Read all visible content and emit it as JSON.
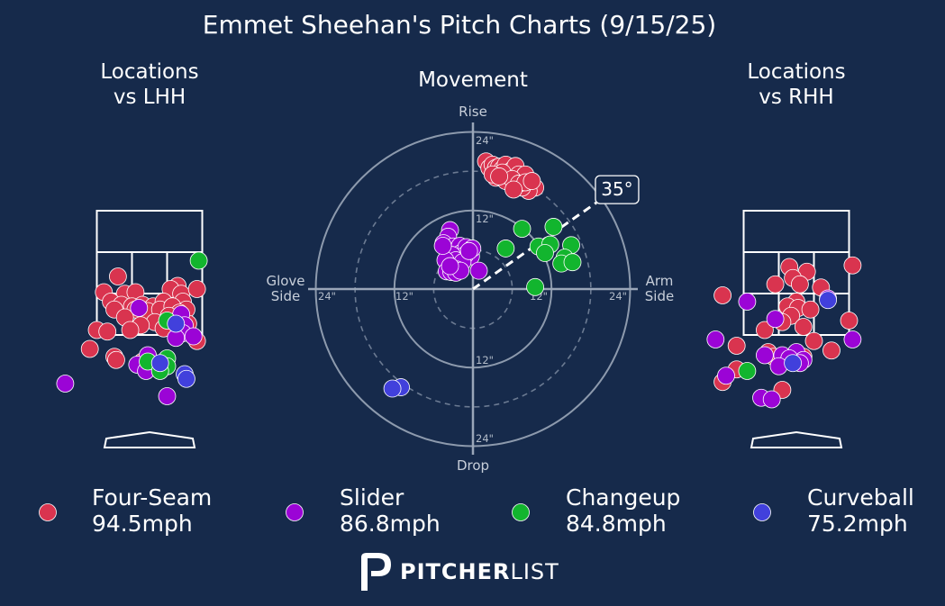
{
  "colors": {
    "background": "#162a4b",
    "four_seam": "#d9344f",
    "slider": "#9b04d6",
    "changeup": "#12b52e",
    "curveball": "#4140dc",
    "grid": "#9aa6b8",
    "text": "#ffffff"
  },
  "brand": {
    "bold": "PITCHER",
    "light": "LIST",
    "logo_icon": "pitcherlist-p-logo-icon"
  },
  "chart_data": [
    {
      "type": "scatter",
      "title": "Emmet Sheehan's Pitch Charts (9/15/25)",
      "subtitle": "Locations vs LHH",
      "title_lines": [
        "Locations",
        "vs LHH"
      ],
      "legend_placement": "bottom",
      "series": [
        {
          "name": "Four-Seam",
          "points": [
            [
              -0.9,
              4.0
            ],
            [
              -1.3,
              3.5
            ],
            [
              -0.7,
              3.45
            ],
            [
              -0.4,
              3.5
            ],
            [
              0.8,
              3.7
            ],
            [
              0.6,
              3.6
            ],
            [
              0.9,
              3.45
            ],
            [
              1.35,
              3.6
            ],
            [
              -1.1,
              3.2
            ],
            [
              -0.8,
              3.1
            ],
            [
              -0.5,
              3.05
            ],
            [
              -0.2,
              3.1
            ],
            [
              0.1,
              3.05
            ],
            [
              0.4,
              3.2
            ],
            [
              0.95,
              3.2
            ],
            [
              -1.0,
              2.95
            ],
            [
              -0.4,
              2.95
            ],
            [
              -0.05,
              2.9
            ],
            [
              0.3,
              2.95
            ],
            [
              0.65,
              3.05
            ],
            [
              1.05,
              2.95
            ],
            [
              0.85,
              2.85
            ],
            [
              -0.7,
              2.7
            ],
            [
              0.55,
              2.75
            ],
            [
              0.15,
              2.55
            ],
            [
              -0.25,
              2.45
            ],
            [
              0.55,
              2.55
            ],
            [
              1.1,
              2.5
            ],
            [
              -1.5,
              2.3
            ],
            [
              -1.2,
              2.25
            ],
            [
              -0.55,
              2.3
            ],
            [
              0.4,
              2.35
            ],
            [
              -1.7,
              1.7
            ],
            [
              -1.0,
              1.45
            ],
            [
              -0.95,
              1.35
            ],
            [
              -0.2,
              1.3
            ],
            [
              1.35,
              1.95
            ]
          ]
        },
        {
          "name": "Slider",
          "points": [
            [
              -0.3,
              3.0
            ],
            [
              0.9,
              2.8
            ],
            [
              1.0,
              2.45
            ],
            [
              0.95,
              2.2
            ],
            [
              0.75,
              2.05
            ],
            [
              1.25,
              2.1
            ],
            [
              -0.05,
              1.5
            ],
            [
              -0.35,
              1.2
            ],
            [
              -0.1,
              1.0
            ],
            [
              -2.4,
              0.6
            ],
            [
              0.5,
              0.2
            ]
          ]
        },
        {
          "name": "Changeup",
          "points": [
            [
              1.4,
              4.5
            ],
            [
              0.5,
              2.6
            ],
            [
              0.5,
              1.4
            ],
            [
              -0.05,
              1.3
            ],
            [
              0.5,
              1.15
            ],
            [
              0.3,
              1.0
            ]
          ]
        },
        {
          "name": "Curveball",
          "points": [
            [
              0.75,
              2.5
            ],
            [
              0.3,
              1.25
            ],
            [
              1.0,
              0.9
            ],
            [
              1.05,
              0.75
            ]
          ]
        }
      ]
    },
    {
      "type": "scatter",
      "subtitle": "Movement",
      "title_lines": [
        "Movement"
      ],
      "polar": true,
      "rings_inches": [
        6,
        12,
        18,
        24
      ],
      "axis_labels": {
        "top": "Rise",
        "bottom": "Drop",
        "left_lines": [
          "Glove",
          "Side"
        ],
        "right_lines": [
          "Arm",
          "Side"
        ]
      },
      "ring_labels": {
        "top24": "24\"",
        "top12": "12\"",
        "bottom12": "12\"",
        "bottom24": "24\"",
        "left24": "24\"",
        "left12": "12\"",
        "right12": "12\"",
        "right24": "24\""
      },
      "arm_angle": "35°",
      "arm_angle_deg": 35,
      "series": [
        {
          "name": "Four-Seam",
          "points": [
            [
              2,
              19.5
            ],
            [
              2.5,
              18.5
            ],
            [
              3,
              19
            ],
            [
              3.5,
              18.5
            ],
            [
              4,
              18.7
            ],
            [
              4.5,
              18.3
            ],
            [
              5,
              19
            ],
            [
              5.5,
              17.8
            ],
            [
              6,
              18.2
            ],
            [
              6.5,
              18.8
            ],
            [
              7,
              17.5
            ],
            [
              7.5,
              16.5
            ],
            [
              8,
              17.5
            ],
            [
              8.8,
              16
            ],
            [
              9.5,
              15.5
            ],
            [
              8.5,
              15
            ],
            [
              7.5,
              15.5
            ],
            [
              6.5,
              16.2
            ],
            [
              5.5,
              16.5
            ],
            [
              4.5,
              17.8
            ],
            [
              3.5,
              17
            ],
            [
              5,
              16.5
            ],
            [
              6,
              16.8
            ],
            [
              7,
              16.1
            ],
            [
              8,
              16.3
            ],
            [
              9,
              16.5
            ],
            [
              3,
              17.5
            ],
            [
              4,
              17.2
            ],
            [
              6.2,
              15.2
            ]
          ]
        },
        {
          "name": "Slider",
          "points": [
            [
              -3.5,
              9
            ],
            [
              -3.8,
              8
            ],
            [
              -4.5,
              7
            ],
            [
              -4,
              6.2
            ],
            [
              -3,
              6.5
            ],
            [
              -2.5,
              5.8
            ],
            [
              -2,
              6.6
            ],
            [
              -1.8,
              5.5
            ],
            [
              -1,
              6.4
            ],
            [
              -0.3,
              5
            ],
            [
              -0.1,
              6.2
            ],
            [
              -1.2,
              5.2
            ],
            [
              -3.2,
              5.2
            ],
            [
              -2.6,
              4.4
            ],
            [
              -4.2,
              4.4
            ],
            [
              -1.6,
              4.1
            ],
            [
              -2.5,
              3.0
            ],
            [
              -4,
              2.7
            ],
            [
              -3.3,
              2.6
            ],
            [
              -2.6,
              2.5
            ],
            [
              -1.9,
              2.8
            ],
            [
              0.9,
              2.8
            ],
            [
              -3.5,
              3.5
            ],
            [
              -4.6,
              6.6
            ],
            [
              -0.6,
              5.8
            ]
          ]
        },
        {
          "name": "Changeup",
          "points": [
            [
              7.5,
              9.2
            ],
            [
              5,
              6.2
            ],
            [
              10,
              6.5
            ],
            [
              12.3,
              9.5
            ],
            [
              11.8,
              6.8
            ],
            [
              15,
              6.7
            ],
            [
              14,
              4.8
            ],
            [
              13.5,
              3.9
            ],
            [
              15.2,
              4.1
            ],
            [
              11,
              5.5
            ],
            [
              9.5,
              0.3
            ]
          ]
        },
        {
          "name": "Curveball",
          "points": [
            [
              -11,
              -15
            ],
            [
              -12.3,
              -15.2
            ]
          ]
        }
      ]
    },
    {
      "type": "scatter",
      "subtitle": "Locations vs RHH",
      "title_lines": [
        "Locations",
        "vs RHH"
      ],
      "series": [
        {
          "name": "Four-Seam",
          "points": [
            [
              -0.2,
              4.3
            ],
            [
              0.3,
              4.15
            ],
            [
              -0.1,
              3.95
            ],
            [
              1.6,
              4.35
            ],
            [
              -0.6,
              3.75
            ],
            [
              0.1,
              3.75
            ],
            [
              0.7,
              3.65
            ],
            [
              -2.1,
              3.4
            ],
            [
              0.0,
              3.2
            ],
            [
              -0.25,
              3.05
            ],
            [
              0.05,
              3.0
            ],
            [
              0.4,
              2.95
            ],
            [
              -0.15,
              2.75
            ],
            [
              1.5,
              2.6
            ],
            [
              -0.4,
              2.55
            ],
            [
              0.2,
              2.4
            ],
            [
              -0.9,
              2.3
            ],
            [
              0.5,
              1.95
            ],
            [
              1.0,
              1.65
            ],
            [
              -1.7,
              1.8
            ],
            [
              -0.8,
              1.6
            ],
            [
              -0.65,
              1.45
            ],
            [
              0.2,
              1.45
            ],
            [
              -1.7,
              1.05
            ],
            [
              -2.1,
              0.65
            ],
            [
              -0.4,
              0.4
            ]
          ]
        },
        {
          "name": "Slider",
          "points": [
            [
              -0.6,
              2.65
            ],
            [
              -2.3,
              2.0
            ],
            [
              1.6,
              2.0
            ],
            [
              -0.9,
              1.5
            ],
            [
              -0.4,
              1.5
            ],
            [
              0.0,
              1.6
            ],
            [
              -0.2,
              1.4
            ],
            [
              0.2,
              1.35
            ],
            [
              0.1,
              1.25
            ],
            [
              -0.5,
              1.15
            ],
            [
              -2.0,
              0.85
            ],
            [
              -1.0,
              0.15
            ],
            [
              -0.7,
              0.1
            ],
            [
              0.9,
              3.3
            ],
            [
              -1.4,
              3.2
            ]
          ]
        },
        {
          "name": "Changeup",
          "points": [
            [
              -1.4,
              1.0
            ]
          ]
        },
        {
          "name": "Curveball",
          "points": [
            [
              0.9,
              3.25
            ],
            [
              -0.1,
              1.25
            ]
          ]
        }
      ]
    }
  ],
  "legend": [
    {
      "key": "four_seam",
      "name": "Four-Seam",
      "speed": "94.5mph"
    },
    {
      "key": "slider",
      "name": "Slider",
      "speed": "86.8mph"
    },
    {
      "key": "changeup",
      "name": "Changeup",
      "speed": "84.8mph"
    },
    {
      "key": "curveball",
      "name": "Curveball",
      "speed": "75.2mph"
    }
  ]
}
